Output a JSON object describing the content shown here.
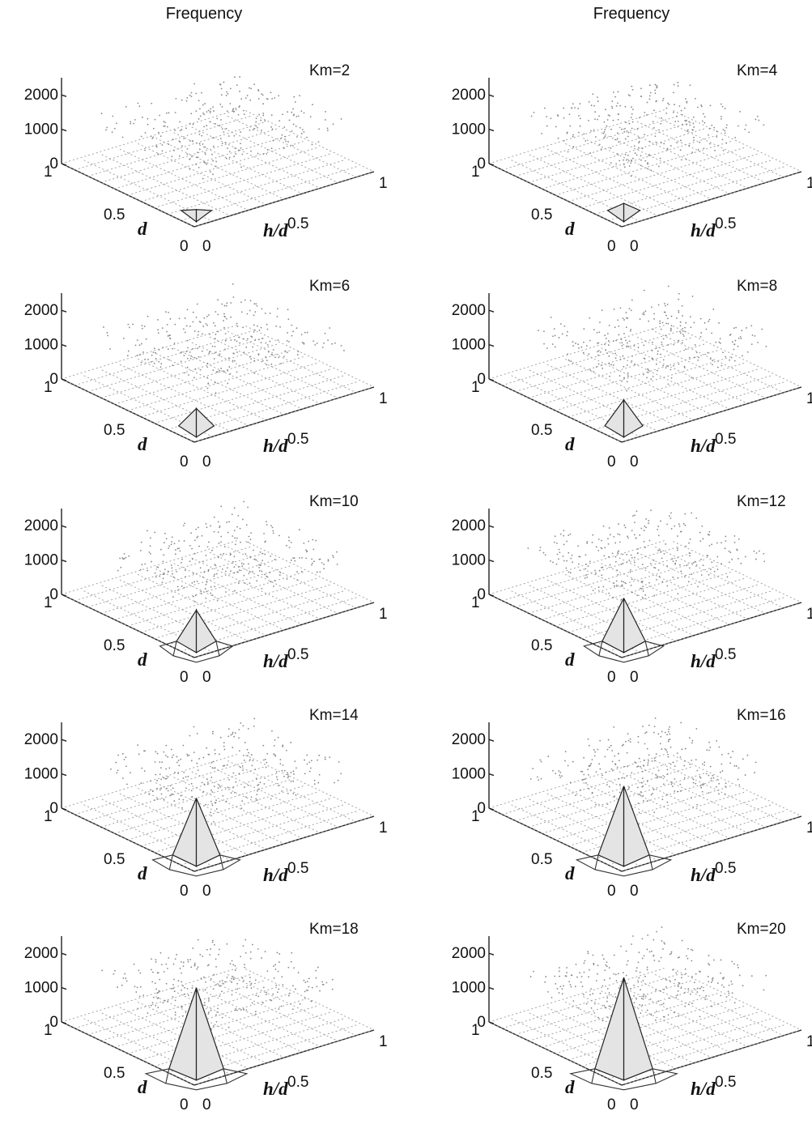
{
  "figure": {
    "left_title": "Frequency",
    "right_title": "Frequency"
  },
  "chart_data": [
    {
      "type": "surface3d",
      "panel_label": "Km=2",
      "z_ticks": [
        "0",
        "1000",
        "2000"
      ],
      "zlim": [
        0,
        2500
      ],
      "x_ticks": [
        "1",
        "0.5",
        "0"
      ],
      "y_ticks": [
        "0",
        "0.5",
        "1"
      ],
      "xlabel": "d",
      "ylabel": "h/d",
      "peak_frequency": 120
    },
    {
      "type": "surface3d",
      "panel_label": "Km=4",
      "z_ticks": [
        "0",
        "1000",
        "2000"
      ],
      "zlim": [
        0,
        2500
      ],
      "x_ticks": [
        "1",
        "0.5",
        "0"
      ],
      "y_ticks": [
        "0",
        "0.5",
        "1"
      ],
      "xlabel": "d",
      "ylabel": "h/d",
      "peak_frequency": 300
    },
    {
      "type": "surface3d",
      "panel_label": "Km=6",
      "z_ticks": [
        "0",
        "1000",
        "2000"
      ],
      "zlim": [
        0,
        2500
      ],
      "x_ticks": [
        "1",
        "0.5",
        "0"
      ],
      "y_ticks": [
        "0",
        "0.5",
        "1"
      ],
      "xlabel": "d",
      "ylabel": "h/d",
      "peak_frequency": 600
    },
    {
      "type": "surface3d",
      "panel_label": "Km=8",
      "z_ticks": [
        "0",
        "1000",
        "2000"
      ],
      "zlim": [
        0,
        2500
      ],
      "x_ticks": [
        "1",
        "0.5",
        "0"
      ],
      "y_ticks": [
        "0",
        "0.5",
        "1"
      ],
      "xlabel": "d",
      "ylabel": "h/d",
      "peak_frequency": 850
    },
    {
      "type": "surface3d",
      "panel_label": "Km=10",
      "z_ticks": [
        "0",
        "1000",
        "2000"
      ],
      "zlim": [
        0,
        2500
      ],
      "x_ticks": [
        "1",
        "0.5",
        "0"
      ],
      "y_ticks": [
        "0",
        "0.5",
        "1"
      ],
      "xlabel": "d",
      "ylabel": "h/d",
      "peak_frequency": 1000
    },
    {
      "type": "surface3d",
      "panel_label": "Km=12",
      "z_ticks": [
        "0",
        "1000",
        "2000"
      ],
      "zlim": [
        0,
        2500
      ],
      "x_ticks": [
        "1",
        "0.5",
        "0"
      ],
      "y_ticks": [
        "0",
        "0.5",
        "1"
      ],
      "xlabel": "d",
      "ylabel": "h/d",
      "peak_frequency": 1350
    },
    {
      "type": "surface3d",
      "panel_label": "Km=14",
      "z_ticks": [
        "0",
        "1000",
        "2000"
      ],
      "zlim": [
        0,
        2500
      ],
      "x_ticks": [
        "1",
        "0.5",
        "0"
      ],
      "y_ticks": [
        "0",
        "0.5",
        "1"
      ],
      "xlabel": "d",
      "ylabel": "h/d",
      "peak_frequency": 1750
    },
    {
      "type": "surface3d",
      "panel_label": "Km=16",
      "z_ticks": [
        "0",
        "1000",
        "2000"
      ],
      "zlim": [
        0,
        2500
      ],
      "x_ticks": [
        "1",
        "0.5",
        "0"
      ],
      "y_ticks": [
        "0",
        "0.5",
        "1"
      ],
      "xlabel": "d",
      "ylabel": "h/d",
      "peak_frequency": 2100
    },
    {
      "type": "surface3d",
      "panel_label": "Km=18",
      "z_ticks": [
        "0",
        "1000",
        "2000"
      ],
      "zlim": [
        0,
        2500
      ],
      "x_ticks": [
        "1",
        "0.5",
        "0"
      ],
      "y_ticks": [
        "0",
        "0.5",
        "1"
      ],
      "xlabel": "d",
      "ylabel": "h/d",
      "peak_frequency": 2450
    },
    {
      "type": "surface3d",
      "panel_label": "Km=20",
      "z_ticks": [
        "0",
        "1000",
        "2000"
      ],
      "zlim": [
        0,
        2500
      ],
      "x_ticks": [
        "1",
        "0.5",
        "0"
      ],
      "y_ticks": [
        "0",
        "0.5",
        "1"
      ],
      "xlabel": "d",
      "ylabel": "h/d",
      "peak_frequency": 2750
    }
  ]
}
